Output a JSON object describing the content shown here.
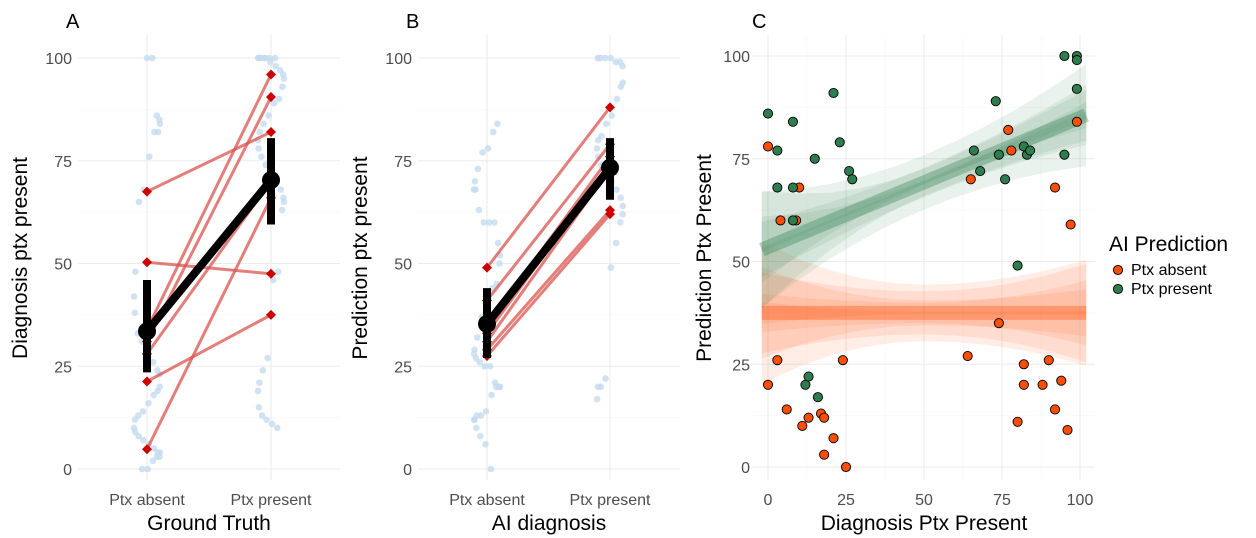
{
  "chart_data": [
    {
      "panel_label": "A",
      "type": "scatter",
      "xlabel": "Ground Truth",
      "ylabel": "Diagnosis ptx present",
      "categories": [
        "Ptx absent",
        "Ptx present"
      ],
      "yticks": [
        "0",
        "25",
        "50",
        "75",
        "100"
      ],
      "ylim": [
        0,
        100
      ],
      "grid": true,
      "colors": {
        "points": "#c6dbef",
        "lines": "#d9534f",
        "diamonds": "#cc0000",
        "mean": "#000000"
      },
      "raw_points": {
        "Ptx absent": [
          100,
          100,
          86,
          85,
          84,
          82,
          82,
          76,
          68,
          65,
          48,
          42,
          38,
          33,
          31,
          28,
          26,
          24,
          23,
          20,
          19,
          18,
          16,
          14,
          13,
          12,
          10,
          9,
          8,
          7,
          6,
          5,
          4,
          4,
          3,
          3,
          2,
          0,
          0
        ],
        "Ptx present": [
          100,
          100,
          100,
          100,
          100,
          100,
          100,
          100,
          99,
          98,
          97,
          96,
          95,
          93,
          90,
          89,
          86,
          84,
          82,
          80,
          78,
          76,
          74,
          72,
          70,
          68,
          66,
          65,
          63,
          48,
          46,
          27,
          24,
          21,
          19,
          15,
          13,
          12,
          11,
          10
        ]
      },
      "paired_lines": [
        {
          "absent": 67.5,
          "present": 82
        },
        {
          "absent": 50.3,
          "present": 47.5
        },
        {
          "absent": 34,
          "present": 96
        },
        {
          "absent": 31,
          "present": 90.5
        },
        {
          "absent": 28,
          "present": 70
        },
        {
          "absent": 21.3,
          "present": 37.5
        },
        {
          "absent": 4.8,
          "present": 66
        }
      ],
      "mean": {
        "absent": 33.5,
        "present": 70.3
      },
      "error_bars": {
        "absent": [
          23.5,
          46
        ],
        "present": [
          59.5,
          80.5
        ]
      }
    },
    {
      "panel_label": "B",
      "type": "scatter",
      "xlabel": "AI diagnosis",
      "ylabel": "Prediction ptx present",
      "categories": [
        "Ptx absent",
        "Ptx present"
      ],
      "yticks": [
        "0",
        "25",
        "50",
        "75",
        "100"
      ],
      "ylim": [
        0,
        100
      ],
      "grid": true,
      "colors": {
        "points": "#c6dbef",
        "lines": "#d9534f",
        "diamonds": "#cc0000",
        "mean": "#000000"
      },
      "raw_points": {
        "Ptx absent": [
          84,
          82,
          78,
          77,
          73,
          70,
          68,
          68,
          63,
          60,
          60,
          60,
          55,
          52,
          50,
          45,
          44,
          40,
          37,
          32,
          29,
          28,
          27,
          26,
          25,
          25,
          21,
          20,
          20,
          20,
          20,
          18,
          14,
          13,
          13,
          12,
          12,
          10,
          8,
          6,
          0
        ],
        "Ptx present": [
          100,
          100,
          100,
          100,
          99,
          99,
          98,
          94,
          93,
          90,
          86,
          84,
          81,
          80,
          78,
          76,
          74,
          72,
          70,
          68,
          66,
          64,
          62,
          60,
          55,
          49,
          22,
          20,
          20,
          17
        ]
      },
      "paired_lines": [
        {
          "absent": 49,
          "present": 88
        },
        {
          "absent": 41,
          "present": 79
        },
        {
          "absent": 35,
          "present": 76
        },
        {
          "absent": 33,
          "present": 74
        },
        {
          "absent": 31,
          "present": 73
        },
        {
          "absent": 29,
          "present": 63
        },
        {
          "absent": 27.5,
          "present": 62
        }
      ],
      "mean": {
        "absent": 35.3,
        "present": 73.3
      },
      "error_bars": {
        "absent": [
          27,
          44
        ],
        "present": [
          65.5,
          80.5
        ]
      }
    },
    {
      "panel_label": "C",
      "type": "scatter",
      "xlabel": "Diagnosis Ptx Present",
      "ylabel": "Prediction Ptx Present",
      "xticks": [
        "0",
        "25",
        "50",
        "75",
        "100"
      ],
      "yticks": [
        "0",
        "25",
        "50",
        "75",
        "100"
      ],
      "xlim": [
        0,
        100
      ],
      "ylim": [
        0,
        100
      ],
      "grid": true,
      "legend": {
        "title": "AI Prediction",
        "position": "right",
        "entries": [
          "Ptx absent",
          "Ptx present"
        ]
      },
      "series": [
        {
          "name": "Ptx absent",
          "color": "#fc4e07",
          "fit": {
            "intercept": 37.5,
            "slope": 0.0
          },
          "band_x0": [
            21,
            27,
            35,
            42,
            47
          ],
          "band_x100": [
            25,
            32,
            38,
            45,
            49
          ],
          "points": [
            [
              0,
              78
            ],
            [
              0,
              20
            ],
            [
              3,
              26
            ],
            [
              4,
              60
            ],
            [
              6,
              14
            ],
            [
              9,
              60
            ],
            [
              10,
              68
            ],
            [
              11,
              10
            ],
            [
              13,
              12
            ],
            [
              17,
              13
            ],
            [
              18,
              12
            ],
            [
              18,
              3
            ],
            [
              21,
              7
            ],
            [
              24,
              26
            ],
            [
              25,
              0
            ],
            [
              64,
              27
            ],
            [
              65,
              70
            ],
            [
              74,
              35
            ],
            [
              77,
              82
            ],
            [
              78,
              77
            ],
            [
              80,
              11
            ],
            [
              82,
              25
            ],
            [
              82,
              20
            ],
            [
              88,
              20
            ],
            [
              90,
              26
            ],
            [
              92,
              68
            ],
            [
              92,
              14
            ],
            [
              94,
              21
            ],
            [
              96,
              9
            ],
            [
              97,
              59
            ],
            [
              99,
              84
            ]
          ]
        },
        {
          "name": "Ptx present",
          "color": "#2e7d4f",
          "fit": {
            "intercept": 53.5,
            "slope": 0.315
          },
          "band_x0": [
            40,
            46,
            53,
            60,
            67
          ],
          "band_x100": [
            79,
            84,
            88,
            92,
            97
          ],
          "points": [
            [
              0,
              86
            ],
            [
              3,
              68
            ],
            [
              3,
              77
            ],
            [
              8,
              84
            ],
            [
              8,
              68
            ],
            [
              8,
              60
            ],
            [
              12,
              20
            ],
            [
              13,
              22
            ],
            [
              15,
              75
            ],
            [
              16,
              17
            ],
            [
              21,
              91
            ],
            [
              23,
              79
            ],
            [
              26,
              72
            ],
            [
              27,
              70
            ],
            [
              66,
              77
            ],
            [
              68,
              72
            ],
            [
              73,
              89
            ],
            [
              74,
              76
            ],
            [
              76,
              70
            ],
            [
              80,
              49
            ],
            [
              82,
              78
            ],
            [
              83,
              76
            ],
            [
              84,
              77
            ],
            [
              95,
              76
            ],
            [
              95,
              100
            ],
            [
              99,
              100
            ],
            [
              99,
              99
            ],
            [
              99,
              92
            ]
          ]
        }
      ]
    }
  ]
}
